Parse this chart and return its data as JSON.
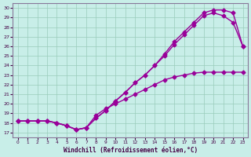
{
  "xlabel": "Windchill (Refroidissement éolien,°C)",
  "line_color": "#990099",
  "bg_color": "#c8eee8",
  "grid_color": "#99ccbb",
  "xlim": [
    -0.5,
    23.5
  ],
  "ylim": [
    16.5,
    30.5
  ],
  "xticks": [
    0,
    1,
    2,
    3,
    4,
    5,
    6,
    7,
    8,
    9,
    10,
    11,
    12,
    13,
    14,
    15,
    16,
    17,
    18,
    19,
    20,
    21,
    22,
    23
  ],
  "yticks": [
    17,
    18,
    19,
    20,
    21,
    22,
    23,
    24,
    25,
    26,
    27,
    28,
    29,
    30
  ],
  "line1_x": [
    0,
    1,
    2,
    3,
    4,
    5,
    6,
    7,
    8,
    9,
    10,
    11,
    12,
    13,
    14,
    15,
    16,
    17,
    18,
    19,
    20,
    21,
    22,
    23
  ],
  "line1_y": [
    18.2,
    18.2,
    18.2,
    18.2,
    18.0,
    17.7,
    17.3,
    17.5,
    18.5,
    19.3,
    20.3,
    21.2,
    22.2,
    23.0,
    24.0,
    25.2,
    26.5,
    27.5,
    28.5,
    29.5,
    29.8,
    29.8,
    29.5,
    26.0
  ],
  "line2_x": [
    0,
    1,
    2,
    3,
    4,
    5,
    6,
    7,
    8,
    9,
    10,
    11,
    12,
    13,
    14,
    15,
    16,
    17,
    18,
    19,
    20,
    21,
    22,
    23
  ],
  "line2_y": [
    18.2,
    18.2,
    18.2,
    18.2,
    18.0,
    17.7,
    17.3,
    17.5,
    18.5,
    19.3,
    20.3,
    21.2,
    22.2,
    23.0,
    24.0,
    25.0,
    26.2,
    27.2,
    28.2,
    29.2,
    29.5,
    29.2,
    28.5,
    26.0
  ],
  "line3_x": [
    0,
    1,
    2,
    3,
    4,
    5,
    6,
    7,
    8,
    9,
    10,
    11,
    12,
    13,
    14,
    15,
    16,
    17,
    18,
    19,
    20,
    21,
    22,
    23
  ],
  "line3_y": [
    18.2,
    18.2,
    18.2,
    18.2,
    18.0,
    17.7,
    17.3,
    17.5,
    18.8,
    19.5,
    20.0,
    20.5,
    21.0,
    21.5,
    22.0,
    22.5,
    22.8,
    23.0,
    23.2,
    23.3,
    23.3,
    23.3,
    23.3,
    23.3
  ],
  "marker": "D",
  "marker_size": 2.5,
  "linewidth": 1.0
}
